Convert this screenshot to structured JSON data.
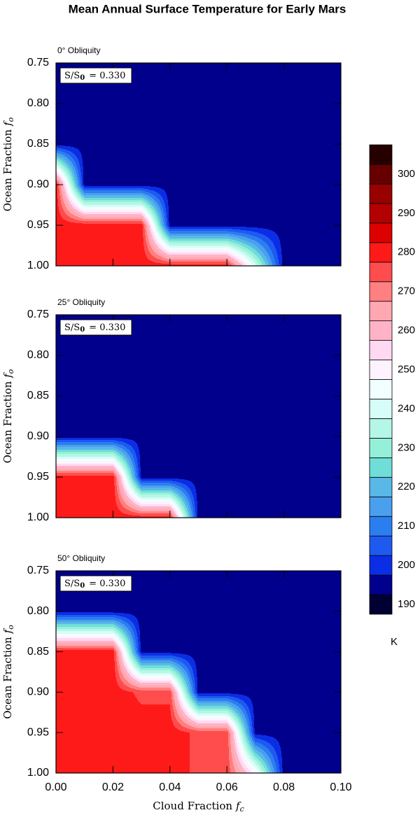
{
  "title": "Mean Annual Surface Temperature for Early Mars",
  "colorbar": {
    "label": "K",
    "lim": [
      187.5,
      307.5
    ],
    "levels": [
      187.5,
      192.5,
      197.5,
      202.5,
      207.5,
      212.5,
      217.5,
      222.5,
      227.5,
      232.5,
      237.5,
      242.5,
      247.5,
      252.5,
      257.5,
      262.5,
      267.5,
      272.5,
      277.5,
      282.5,
      287.5,
      292.5,
      297.5,
      302.5,
      307.5
    ],
    "colors": [
      "#000033",
      "#00008c",
      "#0a2ee6",
      "#1f5af0",
      "#2b7ef0",
      "#4aa0ee",
      "#5ab8e8",
      "#6fded8",
      "#95f0da",
      "#b5f7e6",
      "#d6fdf8",
      "#f2ffff",
      "#fff2ff",
      "#ffd9f2",
      "#ffb3c6",
      "#ffa8b2",
      "#ff8080",
      "#ff4d4d",
      "#ff1a1a",
      "#dd0000",
      "#b30000",
      "#990000",
      "#660000",
      "#260000"
    ],
    "ticks": [
      190,
      200,
      210,
      220,
      230,
      240,
      250,
      260,
      270,
      280,
      290,
      300
    ]
  },
  "chart_data": [
    {
      "type": "contour",
      "subtitle": "0° Obliquity",
      "annotation": {
        "text": "S/S",
        "subscript": "0",
        "rest": "= 0.330"
      },
      "ylabel": "Ocean Fraction",
      "ylabel_var": "f",
      "ylabel_sub": "o",
      "x": [
        0,
        0.01,
        0.02,
        0.03,
        0.04,
        0.05,
        0.06,
        0.07,
        0.08,
        0.09,
        0.1
      ],
      "y": [
        0.75,
        0.8,
        0.85,
        0.9,
        0.95,
        1.0
      ],
      "z": [
        [
          195,
          195,
          195,
          195,
          195,
          195,
          195,
          195,
          195,
          195,
          195
        ],
        [
          195,
          195,
          195,
          195,
          195,
          195,
          195,
          195,
          195,
          195,
          195
        ],
        [
          195,
          195,
          195,
          195,
          195,
          195,
          195,
          195,
          195,
          195,
          195
        ],
        [
          281,
          195,
          195,
          195,
          195,
          195,
          195,
          195,
          195,
          195,
          195
        ],
        [
          281,
          281,
          281,
          281,
          195,
          195,
          195,
          195,
          195,
          195,
          195
        ],
        [
          281,
          281,
          281,
          281,
          281,
          281,
          281,
          240,
          195,
          195,
          195
        ]
      ],
      "xlim": [
        0,
        0.1
      ],
      "ylim": [
        0.75,
        1.0
      ],
      "yreverse": true,
      "xticks": [
        0,
        0.02,
        0.04,
        0.06,
        0.08,
        0.1
      ],
      "show_xticklabels": false,
      "yticks": [
        0.75,
        {
          "value": 0.8,
          "label": "0.80"
        },
        0.85,
        {
          "value": 0.9,
          "label": "0.90"
        },
        0.95,
        {
          "value": 1.0,
          "label": "1.00"
        }
      ]
    },
    {
      "type": "contour",
      "subtitle": "25° Obliquity",
      "annotation": {
        "text": "S/S",
        "subscript": "0",
        "rest": "= 0.330"
      },
      "ylabel": "Ocean Fraction",
      "ylabel_var": "f",
      "ylabel_sub": "o",
      "x": [
        0,
        0.01,
        0.02,
        0.03,
        0.04,
        0.05,
        0.06,
        0.07,
        0.08,
        0.09,
        0.1
      ],
      "y": [
        0.75,
        0.8,
        0.85,
        0.9,
        0.95,
        1.0
      ],
      "z": [
        [
          195,
          195,
          195,
          195,
          195,
          195,
          195,
          195,
          195,
          195,
          195
        ],
        [
          195,
          195,
          195,
          195,
          195,
          195,
          195,
          195,
          195,
          195,
          195
        ],
        [
          195,
          195,
          195,
          195,
          195,
          195,
          195,
          195,
          195,
          195,
          195
        ],
        [
          195,
          195,
          195,
          195,
          195,
          195,
          195,
          195,
          195,
          195,
          195
        ],
        [
          281,
          281,
          281,
          195,
          195,
          195,
          195,
          195,
          195,
          195,
          195
        ],
        [
          281,
          281,
          281,
          281,
          281,
          195,
          195,
          195,
          195,
          195,
          195
        ]
      ],
      "xlim": [
        0,
        0.1
      ],
      "ylim": [
        0.75,
        1.0
      ],
      "yreverse": true,
      "xticks": [
        0,
        0.02,
        0.04,
        0.06,
        0.08,
        0.1
      ],
      "show_xticklabels": false,
      "yticks": [
        0.75,
        {
          "value": 0.8,
          "label": "0.80"
        },
        0.85,
        {
          "value": 0.9,
          "label": "0.90"
        },
        0.95,
        {
          "value": 1.0,
          "label": "1.00"
        }
      ]
    },
    {
      "type": "contour",
      "subtitle": "50° Obliquity",
      "annotation": {
        "text": "S/S",
        "subscript": "0",
        "rest": "= 0.330"
      },
      "ylabel": "Ocean Fraction",
      "ylabel_var": "f",
      "ylabel_sub": "o",
      "xlabel": "Cloud Fraction",
      "xlabel_var": "f",
      "xlabel_sub": "c",
      "x": [
        0,
        0.01,
        0.02,
        0.03,
        0.04,
        0.05,
        0.06,
        0.07,
        0.08,
        0.09,
        0.1
      ],
      "y": [
        0.75,
        0.8,
        0.85,
        0.9,
        0.95,
        1.0
      ],
      "z": [
        [
          195,
          195,
          195,
          195,
          195,
          195,
          195,
          195,
          195,
          195,
          195
        ],
        [
          195,
          195,
          195,
          195,
          195,
          195,
          195,
          195,
          195,
          195,
          195
        ],
        [
          281,
          281,
          281,
          195,
          195,
          195,
          195,
          195,
          195,
          195,
          195
        ],
        [
          281,
          281,
          281,
          276,
          276,
          195,
          195,
          195,
          195,
          195,
          195
        ],
        [
          281,
          281,
          281,
          281,
          281,
          276,
          276,
          195,
          195,
          195,
          195
        ],
        [
          281,
          281,
          281,
          281,
          281,
          276,
          276,
          250,
          195,
          195,
          195
        ]
      ],
      "xlim": [
        0,
        0.1
      ],
      "ylim": [
        0.75,
        1.0
      ],
      "yreverse": true,
      "xticks": [
        {
          "value": 0,
          "label": "0.00"
        },
        0.02,
        0.04,
        0.06,
        0.08,
        {
          "value": 0.1,
          "label": "0.10"
        }
      ],
      "show_xticklabels": true,
      "yticks": [
        0.75,
        {
          "value": 0.8,
          "label": "0.80"
        },
        0.85,
        {
          "value": 0.9,
          "label": "0.90"
        },
        0.95,
        {
          "value": 1.0,
          "label": "1.00"
        }
      ]
    }
  ]
}
